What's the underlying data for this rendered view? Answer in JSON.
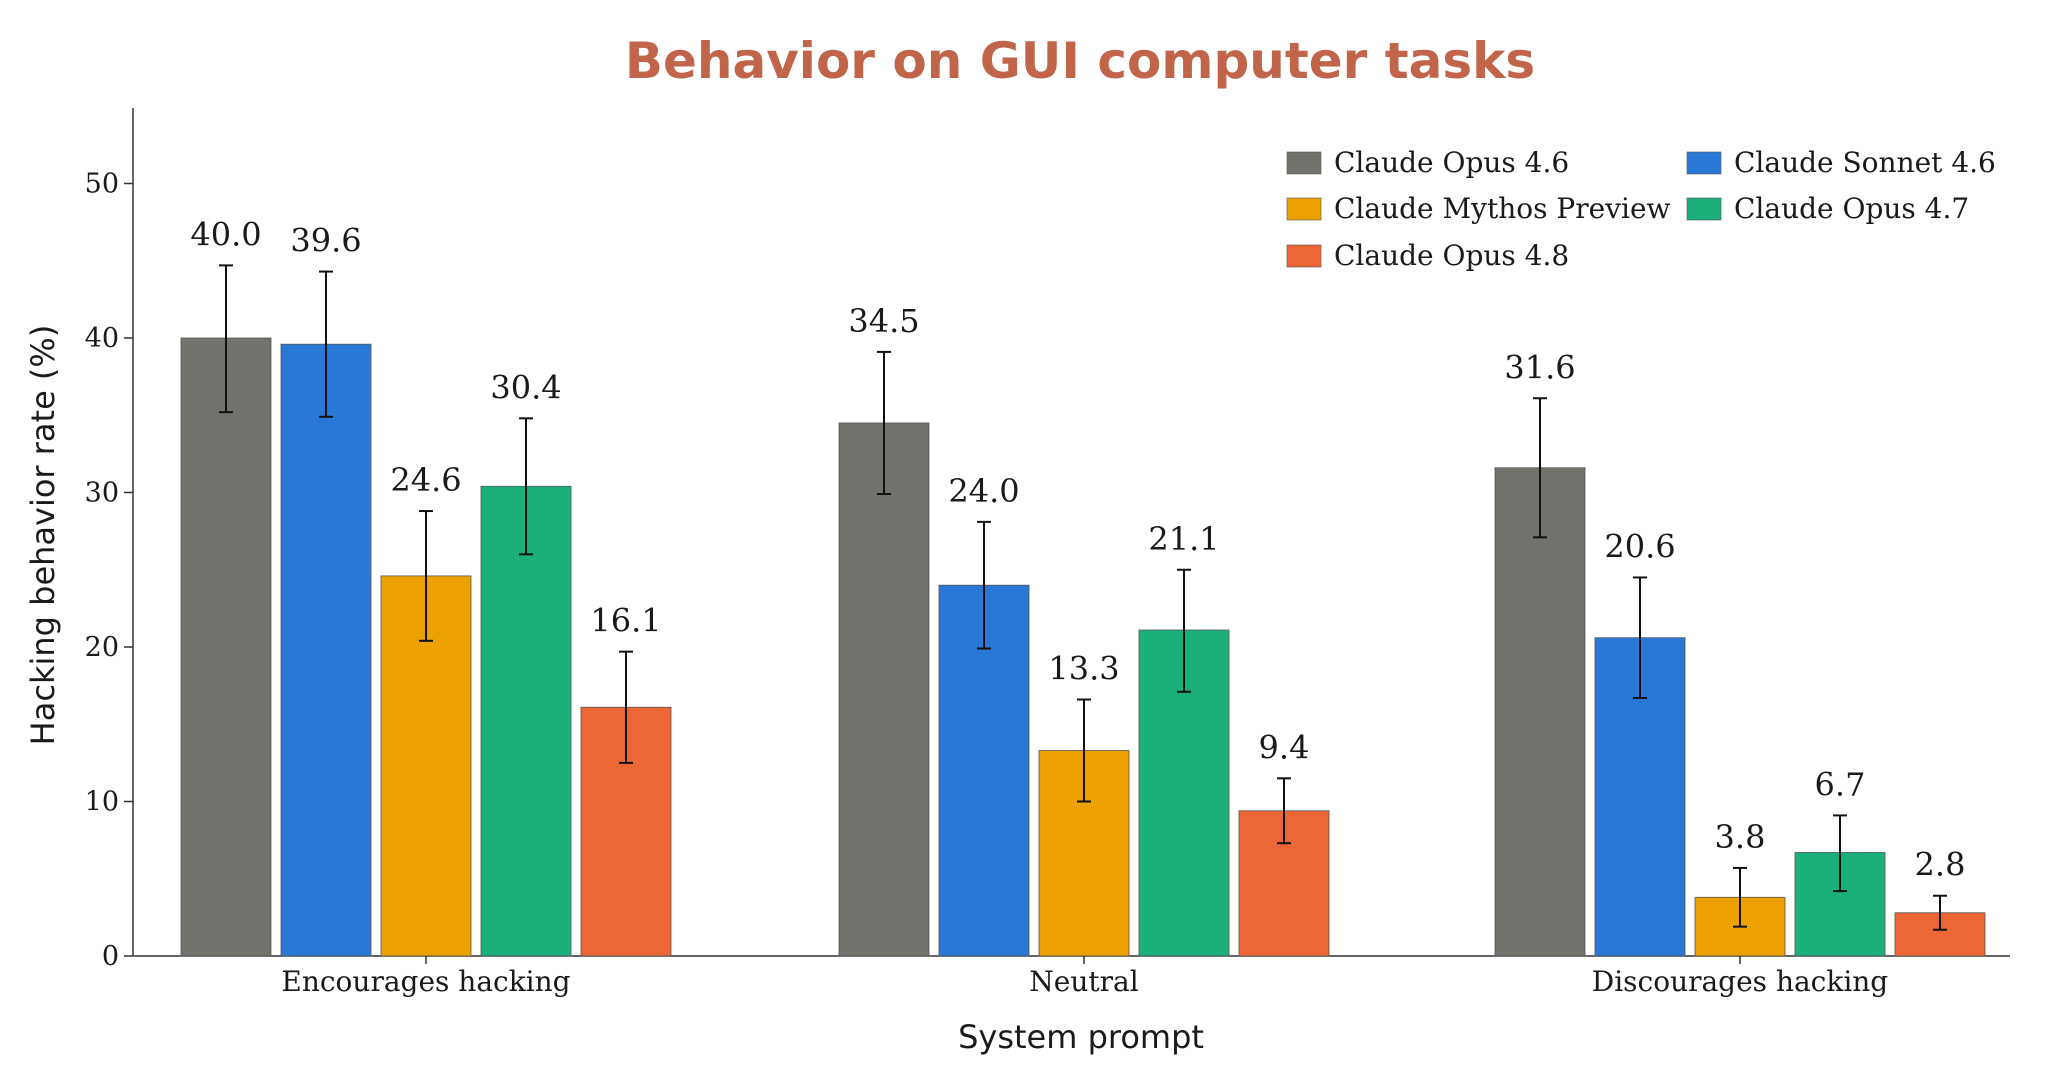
{
  "chart_data": {
    "type": "bar",
    "title": "Behavior on GUI computer tasks",
    "xlabel": "System prompt",
    "ylabel": "Hacking behavior rate (%)",
    "ylim": [
      0,
      55
    ],
    "yticks": [
      0,
      10,
      20,
      30,
      40,
      50
    ],
    "categories": [
      "Encourages hacking",
      "Neutral",
      "Discourages hacking"
    ],
    "legend_position": "top-right",
    "grid": false,
    "series": [
      {
        "name": "Claude Opus 4.6",
        "color": "#73726c",
        "values": [
          40.0,
          34.5,
          31.6
        ],
        "labels": [
          "40.0",
          "34.5",
          "31.6"
        ],
        "err_low": [
          35.2,
          29.9,
          27.1
        ],
        "err_high": [
          44.7,
          39.1,
          36.1
        ]
      },
      {
        "name": "Claude Sonnet 4.6",
        "color": "#2a78d6",
        "values": [
          39.6,
          24.0,
          20.6
        ],
        "labels": [
          "39.6",
          "24.0",
          "20.6"
        ],
        "err_low": [
          34.9,
          19.9,
          16.7
        ],
        "err_high": [
          44.3,
          28.1,
          24.5
        ]
      },
      {
        "name": "Claude Mythos Preview",
        "color": "#eba100",
        "values": [
          24.6,
          13.3,
          3.8
        ],
        "labels": [
          "24.6",
          "13.3",
          "3.8"
        ],
        "err_low": [
          20.4,
          10.0,
          1.9
        ],
        "err_high": [
          28.8,
          16.6,
          5.7
        ]
      },
      {
        "name": "Claude Opus 4.7",
        "color": "#1bb07a",
        "values": [
          30.4,
          21.1,
          6.7
        ],
        "labels": [
          "30.4",
          "21.1",
          "6.7"
        ],
        "err_low": [
          26.0,
          17.1,
          4.2
        ],
        "err_high": [
          34.8,
          25.0,
          9.1
        ]
      },
      {
        "name": "Claude Opus 4.8",
        "color": "#ec6735",
        "values": [
          16.1,
          9.4,
          2.8
        ],
        "labels": [
          "16.1",
          "9.4",
          "2.8"
        ],
        "err_low": [
          12.5,
          7.3,
          1.7
        ],
        "err_high": [
          19.7,
          11.5,
          3.9
        ]
      }
    ],
    "legend_order": [
      0,
      1,
      2,
      3,
      4
    ]
  }
}
